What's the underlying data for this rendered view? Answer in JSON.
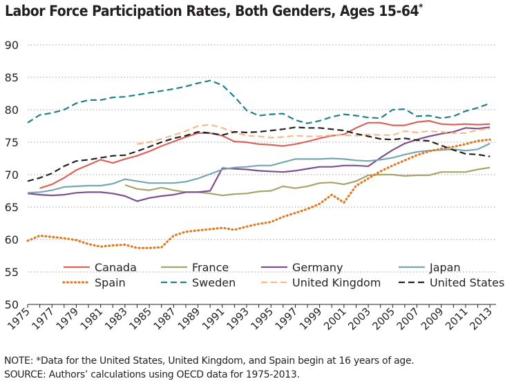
{
  "title": {
    "main": "Labor Force Participation Rates, Both Genders, Ages 15-64",
    "marker": "*"
  },
  "notes": {
    "note": "NOTE: *Data for the United States, United Kingdom, and Spain begin at 16 years of age.",
    "source": "SOURCE: Authors’ calculations using OECD data for 1975-2013."
  },
  "chart_data": {
    "type": "line",
    "title": "Labor Force Participation Rates, Both Genders, Ages 15-64*",
    "xlabel": "",
    "ylabel": "",
    "xlim": [
      1975,
      2013.5
    ],
    "ylim": [
      50,
      90
    ],
    "yticks": [
      50,
      55,
      60,
      65,
      70,
      75,
      80,
      85,
      90
    ],
    "xticks": [
      "1975",
      "1977",
      "1979",
      "1981",
      "1983",
      "1985",
      "1987",
      "1989",
      "1991",
      "1993",
      "1995",
      "1997",
      "1999",
      "2001",
      "2003",
      "2005",
      "2007",
      "2009",
      "2011",
      "2013"
    ],
    "grid": "horizontal dotted",
    "legend_position": "bottom, inside plot area",
    "series": [
      {
        "name": "Canada",
        "color": "#d9625a",
        "dash": "solid",
        "x": [
          1976,
          1977,
          1978,
          1979,
          1980,
          1981,
          1982,
          1983,
          1984,
          1985,
          1986,
          1987,
          1988,
          1989,
          1990,
          1991,
          1992,
          1993,
          1994,
          1995,
          1996,
          1997,
          1998,
          1999,
          2000,
          2001,
          2002,
          2003,
          2004,
          2005,
          2006,
          2007,
          2008,
          2009,
          2010,
          2011,
          2012,
          2013
        ],
        "y": [
          67.9,
          68.5,
          69.5,
          70.7,
          71.5,
          72.3,
          71.8,
          72.4,
          72.9,
          73.6,
          74.4,
          75.1,
          75.8,
          76.4,
          76.4,
          76.0,
          75.1,
          75.0,
          74.7,
          74.6,
          74.4,
          74.7,
          75.1,
          75.6,
          76.0,
          76.2,
          77.2,
          78.0,
          78.0,
          77.6,
          77.6,
          78.1,
          78.3,
          77.8,
          77.7,
          77.8,
          77.7,
          77.8
        ]
      },
      {
        "name": "France",
        "color": "#a6a36a",
        "dash": "solid",
        "x": [
          1983,
          1984,
          1985,
          1986,
          1987,
          1988,
          1989,
          1990,
          1991,
          1992,
          1993,
          1994,
          1995,
          1996,
          1997,
          1998,
          1999,
          2000,
          2001,
          2002,
          2003,
          2004,
          2005,
          2006,
          2007,
          2008,
          2009,
          2010,
          2011,
          2012,
          2013
        ],
        "y": [
          68.4,
          67.8,
          67.6,
          68.0,
          67.6,
          67.3,
          67.3,
          67.1,
          66.8,
          67.0,
          67.1,
          67.4,
          67.5,
          68.2,
          67.9,
          68.2,
          68.7,
          68.8,
          68.5,
          69.0,
          69.9,
          70.0,
          70.0,
          69.8,
          69.9,
          69.9,
          70.4,
          70.4,
          70.4,
          70.8,
          71.1
        ]
      },
      {
        "name": "Germany",
        "color": "#7d4f8c",
        "dash": "solid",
        "x": [
          1975,
          1976,
          1977,
          1978,
          1979,
          1980,
          1981,
          1982,
          1983,
          1984,
          1985,
          1986,
          1987,
          1988,
          1989,
          1990,
          1991,
          1992,
          1993,
          1994,
          1995,
          1996,
          1997,
          1998,
          1999,
          2000,
          2001,
          2002,
          2003,
          2004,
          2005,
          2006,
          2007,
          2008,
          2009,
          2010,
          2011,
          2012,
          2013
        ],
        "y": [
          67.1,
          66.9,
          66.8,
          66.9,
          67.2,
          67.3,
          67.3,
          67.1,
          66.7,
          65.9,
          66.4,
          66.7,
          66.9,
          67.3,
          67.3,
          67.5,
          71.0,
          70.9,
          70.8,
          70.6,
          70.5,
          70.4,
          70.6,
          70.9,
          71.2,
          71.2,
          71.4,
          71.4,
          71.3,
          72.6,
          73.8,
          74.8,
          75.4,
          75.9,
          76.3,
          76.6,
          77.2,
          77.1,
          77.3
        ]
      },
      {
        "name": "Japan",
        "color": "#76a5b3",
        "dash": "solid",
        "x": [
          1975,
          1976,
          1977,
          1978,
          1979,
          1980,
          1981,
          1982,
          1983,
          1984,
          1985,
          1986,
          1987,
          1988,
          1989,
          1990,
          1991,
          1992,
          1993,
          1994,
          1995,
          1996,
          1997,
          1998,
          1999,
          2000,
          2001,
          2002,
          2003,
          2004,
          2005,
          2006,
          2007,
          2008,
          2009,
          2010,
          2011,
          2012,
          2013
        ],
        "y": [
          67.2,
          67.3,
          67.6,
          68.1,
          68.2,
          68.3,
          68.3,
          68.6,
          69.3,
          69.0,
          68.7,
          68.7,
          68.7,
          68.9,
          69.4,
          70.1,
          70.8,
          71.1,
          71.2,
          71.4,
          71.4,
          71.9,
          72.4,
          72.4,
          72.4,
          72.5,
          72.4,
          72.2,
          72.1,
          72.3,
          72.6,
          73.1,
          73.5,
          73.7,
          73.8,
          73.9,
          73.7,
          73.9,
          74.8
        ]
      },
      {
        "name": "Spain",
        "color": "#e07b24",
        "dash": "dotted",
        "x": [
          1975,
          1976,
          1977,
          1978,
          1979,
          1980,
          1981,
          1982,
          1983,
          1984,
          1985,
          1986,
          1987,
          1988,
          1989,
          1990,
          1991,
          1992,
          1993,
          1994,
          1995,
          1996,
          1997,
          1998,
          1999,
          2000,
          2001,
          2002,
          2003,
          2004,
          2005,
          2006,
          2007,
          2008,
          2009,
          2010,
          2011,
          2012,
          2013
        ],
        "y": [
          59.8,
          60.6,
          60.4,
          60.2,
          59.9,
          59.3,
          58.9,
          59.1,
          59.2,
          58.7,
          58.7,
          58.8,
          60.6,
          61.2,
          61.4,
          61.6,
          61.8,
          61.5,
          62.0,
          62.4,
          62.7,
          63.5,
          64.1,
          64.7,
          65.5,
          66.9,
          65.7,
          68.3,
          69.4,
          70.5,
          71.4,
          72.2,
          73.0,
          73.6,
          74.0,
          74.3,
          74.7,
          75.2,
          75.4
        ]
      },
      {
        "name": "Sweden",
        "color": "#1f7f86",
        "dash": "dashed",
        "x": [
          1975,
          1976,
          1977,
          1978,
          1979,
          1980,
          1981,
          1982,
          1983,
          1984,
          1985,
          1986,
          1987,
          1988,
          1989,
          1990,
          1991,
          1992,
          1993,
          1994,
          1995,
          1996,
          1997,
          1998,
          1999,
          2000,
          2001,
          2002,
          2003,
          2004,
          2005,
          2006,
          2007,
          2008,
          2009,
          2010,
          2011,
          2012,
          2013
        ],
        "y": [
          78.0,
          79.2,
          79.5,
          80.0,
          81.0,
          81.5,
          81.5,
          81.9,
          82.0,
          82.3,
          82.6,
          82.9,
          83.2,
          83.6,
          84.1,
          84.5,
          83.8,
          82.0,
          79.9,
          79.1,
          79.3,
          79.4,
          78.4,
          77.9,
          78.3,
          78.9,
          79.3,
          79.1,
          78.8,
          78.7,
          80.0,
          80.1,
          79.0,
          79.1,
          78.7,
          79.0,
          79.8,
          80.3,
          81.0
        ]
      },
      {
        "name": "United Kingdom",
        "color": "#f5b98c",
        "dash": "dashed",
        "x": [
          1984,
          1985,
          1986,
          1987,
          1988,
          1989,
          1990,
          1991,
          1992,
          1993,
          1994,
          1995,
          1996,
          1997,
          1998,
          1999,
          2000,
          2001,
          2002,
          2003,
          2004,
          2005,
          2006,
          2007,
          2008,
          2009,
          2010,
          2011,
          2012,
          2013
        ],
        "y": [
          74.7,
          75.0,
          75.5,
          76.1,
          76.7,
          77.5,
          77.7,
          77.2,
          76.5,
          76.0,
          75.9,
          75.7,
          75.8,
          76.0,
          75.9,
          75.9,
          76.1,
          76.1,
          76.0,
          76.2,
          76.1,
          76.1,
          76.7,
          76.5,
          76.7,
          76.6,
          76.4,
          76.4,
          76.9,
          77.1
        ]
      },
      {
        "name": "United States",
        "color": "#231f20",
        "dash": "dashed",
        "x": [
          1975,
          1976,
          1977,
          1978,
          1979,
          1980,
          1981,
          1982,
          1983,
          1984,
          1985,
          1986,
          1987,
          1988,
          1989,
          1990,
          1991,
          1992,
          1993,
          1994,
          1995,
          1996,
          1997,
          1998,
          1999,
          2000,
          2001,
          2002,
          2003,
          2004,
          2005,
          2006,
          2007,
          2008,
          2009,
          2010,
          2011,
          2012,
          2013
        ],
        "y": [
          69.0,
          69.5,
          70.2,
          71.3,
          72.1,
          72.3,
          72.6,
          72.9,
          73.0,
          73.6,
          74.3,
          75.0,
          75.6,
          76.0,
          76.6,
          76.4,
          76.1,
          76.6,
          76.5,
          76.6,
          76.8,
          77.0,
          77.3,
          77.2,
          77.2,
          77.0,
          76.8,
          76.3,
          75.9,
          75.5,
          75.4,
          75.6,
          75.3,
          75.2,
          74.5,
          73.8,
          73.2,
          73.1,
          72.8
        ]
      }
    ]
  }
}
